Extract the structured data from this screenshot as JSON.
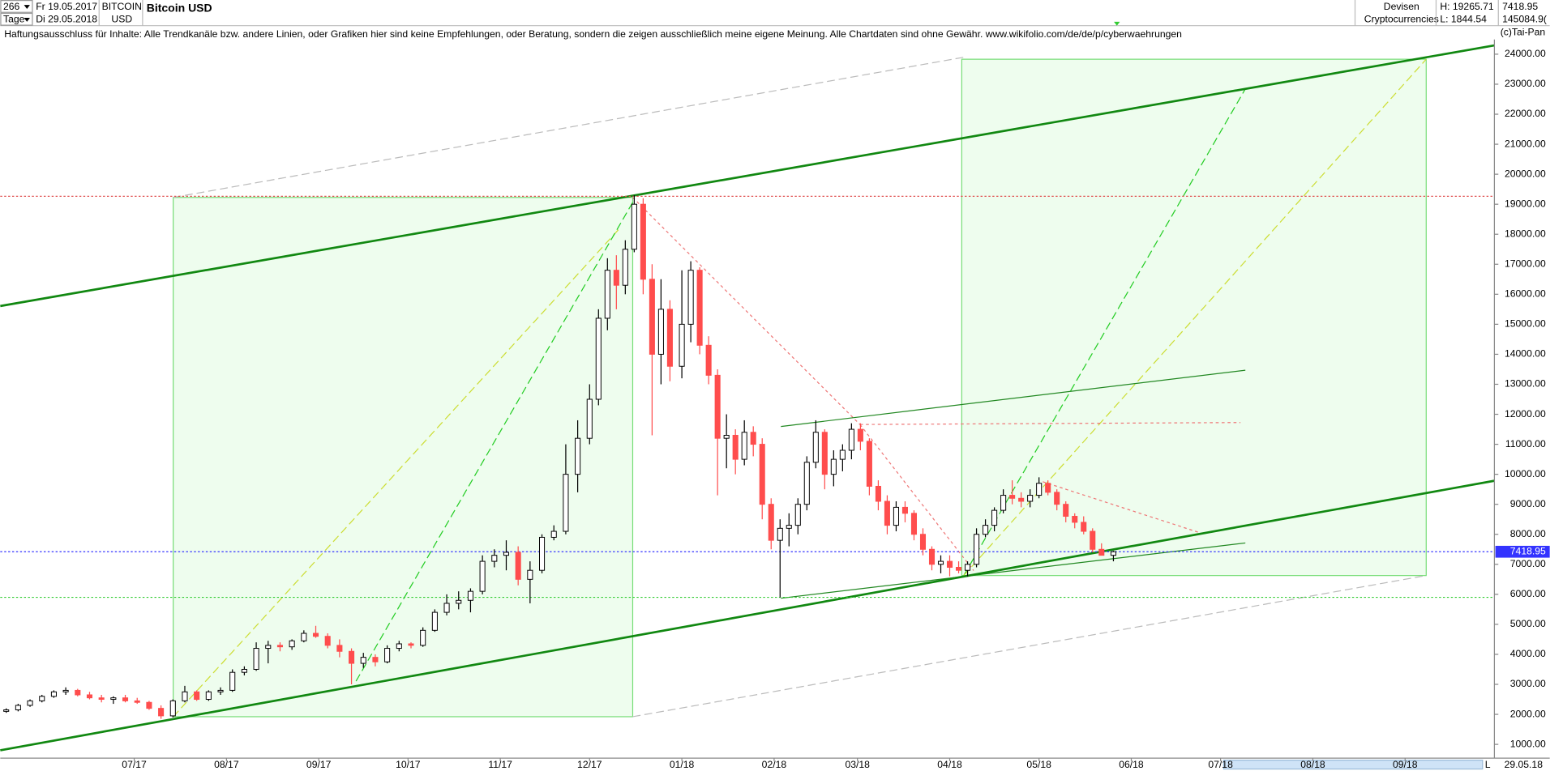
{
  "header": {
    "count": "266",
    "period": "Tage",
    "from": "Fr 19.05.2017",
    "to": "Di 29.05.2018",
    "symbol": "BITCOIN",
    "currency": "USD",
    "market": "Devisen",
    "group": "Cryptocurrencies",
    "high": "H: 19265.71",
    "low": "L: 1844.54",
    "last": "7418.95",
    "volume": "145084.9(",
    "copyright": "(c)Tai-Pan",
    "disclaimer": "Haftungsausschluss für Inhalte: Alle Trendkanäle bzw. andere Linien, oder Grafiken hier sind keine Empfehlungen, oder Beratung, sondern die zeigen ausschließlich meine eigene Meinung. Alle Chartdaten sind ohne Gewähr.  www.wikifolio.com/de/de/p/cyberwaehrungen",
    "end_date": "29.05.18",
    "scale": "L"
  },
  "chart_data": {
    "type": "candlestick",
    "title": "Bitcoin USD",
    "x": [
      0,
      4,
      8,
      12,
      16,
      20,
      24,
      28,
      32,
      36,
      40,
      44,
      48,
      52,
      56,
      60,
      64,
      68,
      72,
      76,
      80,
      84,
      88,
      92,
      96,
      100,
      104,
      108,
      112,
      116,
      120,
      124,
      128,
      132,
      136,
      140,
      144,
      148,
      152,
      156,
      160,
      164,
      168,
      172,
      176,
      180,
      184,
      188,
      192,
      196,
      199,
      202,
      205,
      208,
      211,
      214,
      217,
      220,
      223,
      227,
      230,
      233,
      236,
      239,
      242,
      245,
      248,
      251,
      254,
      257,
      260,
      263,
      266,
      269,
      272,
      275,
      278,
      281,
      284,
      287,
      290,
      293,
      296,
      299,
      302,
      305,
      308,
      311,
      314,
      317,
      320,
      323,
      326,
      329,
      332,
      335,
      338,
      341,
      344,
      347,
      350,
      353,
      356,
      359,
      362,
      365,
      368,
      372
    ],
    "open": [
      2100,
      2150,
      2300,
      2450,
      2600,
      2750,
      2800,
      2650,
      2550,
      2500,
      2550,
      2450,
      2400,
      2200,
      1950,
      2450,
      2750,
      2500,
      2750,
      2800,
      3400,
      3500,
      4200,
      4300,
      4250,
      4450,
      4700,
      4600,
      4300,
      4100,
      3700,
      3900,
      3750,
      4200,
      4350,
      4300,
      4800,
      5400,
      5700,
      5800,
      6100,
      7100,
      7300,
      7400,
      6500,
      6800,
      7900,
      8100,
      10000,
      11200,
      12500,
      15200,
      16800,
      16300,
      17500,
      19000,
      16500,
      14000,
      15500,
      13600,
      15000,
      16800,
      14300,
      13300,
      11200,
      11300,
      10500,
      11400,
      11000,
      9000,
      7800,
      8200,
      8300,
      9000,
      10400,
      11400,
      10000,
      10500,
      10800,
      11500,
      11100,
      9600,
      9100,
      8300,
      8900,
      8700,
      8000,
      7500,
      7000,
      7100,
      6900,
      6800,
      7000,
      8000,
      8300,
      8800,
      9300,
      9200,
      9100,
      9300,
      9700,
      9400,
      9000,
      8600,
      8400,
      8100,
      7500,
      7300
    ],
    "high": [
      2200,
      2350,
      2500,
      2650,
      2800,
      2900,
      2850,
      2750,
      2650,
      2600,
      2650,
      2550,
      2450,
      2300,
      2500,
      2950,
      2800,
      2800,
      2900,
      3500,
      3600,
      4400,
      4450,
      4400,
      4500,
      4800,
      4950,
      4700,
      4500,
      4200,
      4050,
      4000,
      4300,
      4450,
      4400,
      4900,
      5500,
      6000,
      6100,
      6200,
      7300,
      7500,
      7800,
      7600,
      7100,
      8000,
      8300,
      11000,
      11800,
      13000,
      15500,
      17200,
      17300,
      17800,
      19300,
      19200,
      17000,
      16500,
      15800,
      16800,
      17100,
      16900,
      14600,
      13500,
      12000,
      11500,
      11800,
      11600,
      11200,
      9200,
      8500,
      8700,
      9200,
      10600,
      11800,
      11500,
      10800,
      11000,
      11700,
      11700,
      11200,
      9800,
      9300,
      9100,
      9100,
      8800,
      8200,
      7600,
      7300,
      7300,
      7100,
      7100,
      8200,
      8500,
      8900,
      9500,
      9800,
      9400,
      9500,
      9900,
      9800,
      9500,
      9100,
      8700,
      8600,
      8200,
      7700,
      7450
    ],
    "low": [
      2050,
      2100,
      2250,
      2400,
      2550,
      2650,
      2600,
      2500,
      2400,
      2350,
      2400,
      2350,
      2150,
      1850,
      1900,
      2400,
      2450,
      2450,
      2650,
      2750,
      3300,
      3450,
      3700,
      4100,
      4150,
      4400,
      4550,
      4200,
      3900,
      3000,
      3550,
      3600,
      3700,
      4100,
      4200,
      4250,
      4750,
      5300,
      5500,
      5400,
      6000,
      6900,
      6800,
      6300,
      5700,
      6700,
      7800,
      8000,
      9400,
      11000,
      12300,
      14800,
      15500,
      16000,
      17400,
      16000,
      11300,
      13000,
      13100,
      13200,
      14400,
      14000,
      13000,
      9300,
      10200,
      10000,
      10300,
      10600,
      8500,
      7500,
      5900,
      7600,
      8000,
      8800,
      10200,
      9500,
      9600,
      10100,
      10500,
      10800,
      9300,
      8800,
      8000,
      8100,
      8400,
      7800,
      7300,
      6800,
      6700,
      6600,
      6700,
      6600,
      6900,
      7900,
      8100,
      8700,
      9000,
      8900,
      8900,
      9200,
      9300,
      8800,
      8400,
      8200,
      8000,
      7400,
      7300,
      7100
    ],
    "close": [
      2150,
      2300,
      2450,
      2600,
      2750,
      2800,
      2650,
      2550,
      2500,
      2550,
      2450,
      2400,
      2200,
      1950,
      2450,
      2750,
      2500,
      2750,
      2800,
      3400,
      3500,
      4200,
      4300,
      4250,
      4450,
      4700,
      4600,
      4300,
      4100,
      3700,
      3900,
      3750,
      4200,
      4350,
      4300,
      4800,
      5400,
      5700,
      5800,
      6100,
      7100,
      7300,
      7400,
      6500,
      6800,
      7900,
      8100,
      10000,
      11200,
      12500,
      15200,
      16800,
      16300,
      17500,
      19000,
      16500,
      14000,
      15500,
      13600,
      15000,
      16800,
      14300,
      13300,
      11200,
      11300,
      10500,
      11400,
      11000,
      9000,
      7800,
      8200,
      8300,
      9000,
      10400,
      11400,
      10000,
      10500,
      10800,
      11500,
      11100,
      9600,
      9100,
      8300,
      8900,
      8700,
      8000,
      7500,
      7000,
      7100,
      6900,
      6800,
      7000,
      8000,
      8300,
      8800,
      9300,
      9200,
      9100,
      9300,
      9700,
      9400,
      9000,
      8600,
      8400,
      8100,
      7500,
      7300,
      7418.95
    ],
    "up_color": "#ffffff",
    "down_color": "#ff4d4d",
    "wick_color": "#000000",
    "xlim": [
      -2,
      500
    ],
    "xticks": [
      {
        "value": 43,
        "label": "07/17"
      },
      {
        "value": 74,
        "label": "08/17"
      },
      {
        "value": 105,
        "label": "09/17"
      },
      {
        "value": 135,
        "label": "10/17"
      },
      {
        "value": 166,
        "label": "11/17"
      },
      {
        "value": 196,
        "label": "12/17"
      },
      {
        "value": 227,
        "label": "01/18"
      },
      {
        "value": 258,
        "label": "02/18"
      },
      {
        "value": 286,
        "label": "03/18"
      },
      {
        "value": 317,
        "label": "04/18"
      },
      {
        "value": 347,
        "label": "05/18"
      },
      {
        "value": 378,
        "label": "06/18"
      },
      {
        "value": 408,
        "label": "07/18"
      },
      {
        "value": 439,
        "label": "08/18"
      },
      {
        "value": 470,
        "label": "09/18"
      }
    ],
    "ylim": [
      540,
      24490
    ],
    "yticks": [
      {
        "value": 1000,
        "label": "1000.00"
      },
      {
        "value": 2000,
        "label": "2000.00"
      },
      {
        "value": 3000,
        "label": "3000.00"
      },
      {
        "value": 4000,
        "label": "4000.00"
      },
      {
        "value": 5000,
        "label": "5000.00"
      },
      {
        "value": 6000,
        "label": "6000.00"
      },
      {
        "value": 7000,
        "label": "7000.00"
      },
      {
        "value": 8000,
        "label": "8000.00"
      },
      {
        "value": 9000,
        "label": "9000.00"
      },
      {
        "value": 10000,
        "label": "10000.00"
      },
      {
        "value": 11000,
        "label": "11000.00"
      },
      {
        "value": 12000,
        "label": "12000.00"
      },
      {
        "value": 13000,
        "label": "13000.00"
      },
      {
        "value": 14000,
        "label": "14000.00"
      },
      {
        "value": 15000,
        "label": "15000.00"
      },
      {
        "value": 16000,
        "label": "16000.00"
      },
      {
        "value": 17000,
        "label": "17000.00"
      },
      {
        "value": 18000,
        "label": "18000.00"
      },
      {
        "value": 19000,
        "label": "19000.00"
      },
      {
        "value": 20000,
        "label": "20000.00"
      },
      {
        "value": 21000,
        "label": "21000.00"
      },
      {
        "value": 22000,
        "label": "22000.00"
      },
      {
        "value": 23000,
        "label": "23000.00"
      },
      {
        "value": 24000,
        "label": "24000.00"
      }
    ],
    "hlines": [
      {
        "value": 19265.71,
        "color": "#e05050"
      },
      {
        "value": 5900,
        "color": "#33cc33"
      },
      {
        "value": 7418.95,
        "color": "#3333ff"
      }
    ],
    "last_price": 7418.95,
    "last_color": "#3333ff"
  }
}
